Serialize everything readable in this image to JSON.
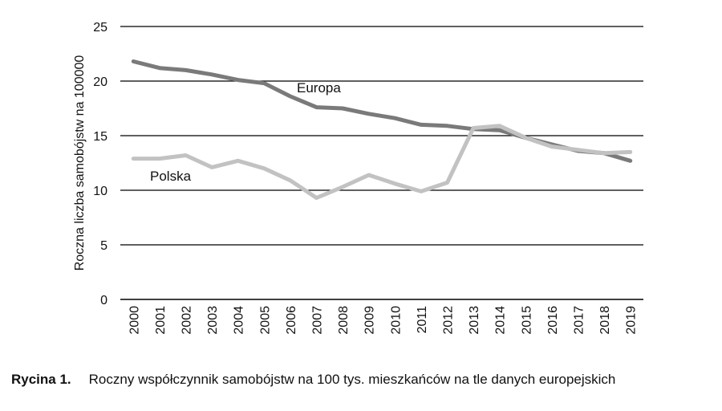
{
  "caption": {
    "figure_number": "Rycina 1.",
    "text": "Roczny współczynnik samobójstw na 100 tys. mieszkańców na tle danych europejskich"
  },
  "chart_data": {
    "type": "line",
    "title": "",
    "xlabel": "",
    "ylabel": "Roczna liczba samobójstw na 100000",
    "ylim": [
      0,
      25
    ],
    "yticks": [
      0,
      5,
      10,
      15,
      20,
      25
    ],
    "grid": true,
    "legend": "inline labels",
    "categories": [
      "2000",
      "2001",
      "2002",
      "2003",
      "2004",
      "2005",
      "2006",
      "2007",
      "2008",
      "2009",
      "2010",
      "2011",
      "2012",
      "2013",
      "2014",
      "2015",
      "2016",
      "2017",
      "2018",
      "2019"
    ],
    "series": [
      {
        "name": "Europa",
        "color": "#7a7a7a",
        "values": [
          21.8,
          21.2,
          21.0,
          20.6,
          20.1,
          19.8,
          18.6,
          17.6,
          17.5,
          17.0,
          16.6,
          16.0,
          15.9,
          15.6,
          15.5,
          14.8,
          14.2,
          13.6,
          13.4,
          12.7
        ]
      },
      {
        "name": "Polska",
        "color": "#c2c2c2",
        "values": [
          12.9,
          12.9,
          13.2,
          12.1,
          12.7,
          12.0,
          10.9,
          9.3,
          10.3,
          11.4,
          10.6,
          9.9,
          10.7,
          15.7,
          15.9,
          14.8,
          14.0,
          13.7,
          13.4,
          13.5
        ]
      }
    ]
  }
}
